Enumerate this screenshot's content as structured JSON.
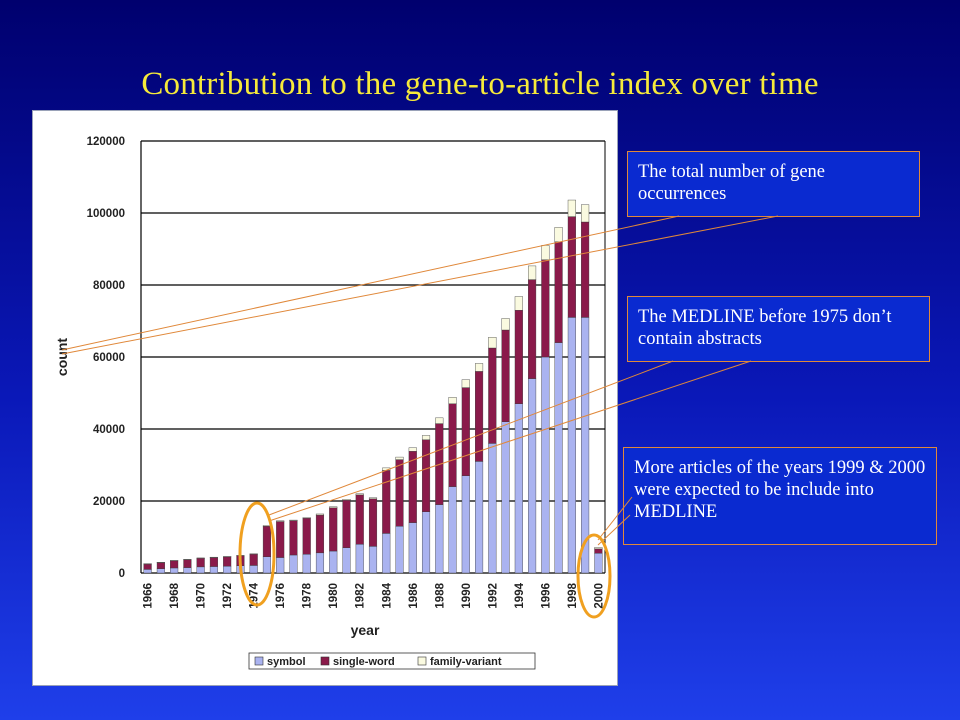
{
  "slide": {
    "title": "Contribution to the gene-to-article index over time"
  },
  "callouts": {
    "total": "The total number of gene occurrences",
    "medline": "The MEDLINE before 1975 don’t contain abstracts",
    "expected": "More articles of the years 1999 & 2000 were expected to be include into MEDLINE"
  },
  "colors": {
    "symbol": "#aab3f0",
    "single_word": "#8a1a4a",
    "family_variant": "#fafae0",
    "callout_border": "#e0883a",
    "ellipse": "#f0a020"
  },
  "chart_data": {
    "type": "bar",
    "stacked": true,
    "xlabel": "year",
    "ylabel": "count",
    "ylim": [
      0,
      120000
    ],
    "yticks": [
      "0",
      "20000",
      "40000",
      "60000",
      "80000",
      "100000",
      "120000"
    ],
    "xtick_labels": [
      "1966",
      "1968",
      "1970",
      "1972",
      "1974",
      "1976",
      "1978",
      "1980",
      "1982",
      "1984",
      "1986",
      "1988",
      "1990",
      "1992",
      "1994",
      "1996",
      "1998",
      "2000"
    ],
    "grid": "horizontal",
    "legend_position": "bottom",
    "categories": [
      "1966",
      "1967",
      "1968",
      "1969",
      "1970",
      "1971",
      "1972",
      "1973",
      "1974",
      "1975",
      "1976",
      "1977",
      "1978",
      "1979",
      "1980",
      "1981",
      "1982",
      "1983",
      "1984",
      "1985",
      "1986",
      "1987",
      "1988",
      "1989",
      "1990",
      "1991",
      "1992",
      "1993",
      "1994",
      "1995",
      "1996",
      "1997",
      "1998",
      "1999",
      "2000"
    ],
    "series": [
      {
        "name": "symbol",
        "values": [
          1000,
          1200,
          1400,
          1500,
          1700,
          1800,
          1900,
          2000,
          2100,
          4500,
          4300,
          5000,
          5200,
          5600,
          6100,
          7000,
          8000,
          7400,
          11000,
          13000,
          14000,
          17000,
          19000,
          24000,
          27000,
          31000,
          36000,
          42000,
          47000,
          54000,
          60000,
          64000,
          71000,
          71000,
          5500
        ]
      },
      {
        "name": "single-word",
        "values": [
          1500,
          1700,
          2000,
          2200,
          2400,
          2500,
          2600,
          2800,
          3100,
          8500,
          10000,
          9500,
          10000,
          10500,
          12000,
          13200,
          13700,
          13200,
          17500,
          18500,
          19800,
          20000,
          22500,
          23000,
          24500,
          25000,
          26500,
          25500,
          26000,
          27500,
          27000,
          28000,
          28000,
          26500,
          1200
        ]
      },
      {
        "name": "family-variant",
        "values": [
          100,
          100,
          100,
          100,
          100,
          100,
          100,
          100,
          150,
          200,
          200,
          200,
          200,
          300,
          300,
          300,
          300,
          300,
          700,
          700,
          1000,
          1200,
          1600,
          1800,
          2200,
          2200,
          3000,
          3200,
          3800,
          3800,
          4000,
          4000,
          4600,
          4800,
          400
        ]
      }
    ]
  }
}
